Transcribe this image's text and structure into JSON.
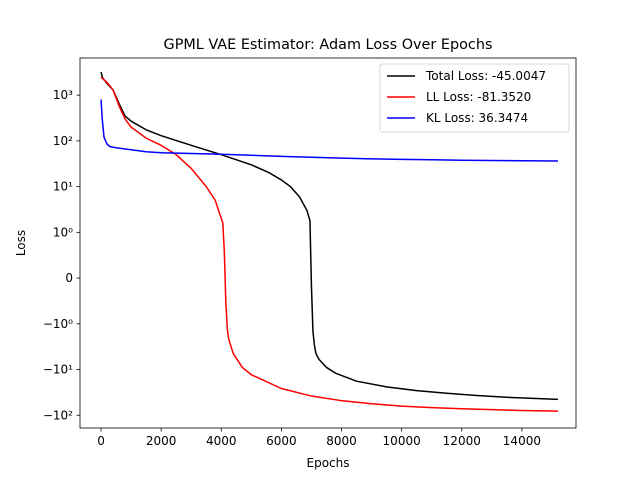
{
  "chart_data": {
    "type": "line",
    "title": "GPML VAE Estimator: Adam Loss Over Epochs",
    "xlabel": "Epochs",
    "ylabel": "Loss",
    "yscale": "symlog",
    "linthresh": 1,
    "xlim": [
      -700,
      15800
    ],
    "ylim": [
      -190,
      6500
    ],
    "x_ticks": [
      0,
      2000,
      4000,
      6000,
      8000,
      10000,
      12000,
      14000
    ],
    "x_tick_labels": [
      "0",
      "2000",
      "4000",
      "6000",
      "8000",
      "10000",
      "12000",
      "14000"
    ],
    "y_ticks": [
      1000,
      100,
      10,
      1,
      0,
      -1,
      -10,
      -100
    ],
    "y_tick_labels": [
      "10³",
      "10²",
      "10¹",
      "10⁰",
      "0",
      "−10⁰",
      "−10¹",
      "−10²"
    ],
    "grid": false,
    "legend_position": "top-right",
    "series": [
      {
        "name": "Total Loss: -45.0047",
        "color": "#000000",
        "points": [
          [
            0,
            3200
          ],
          [
            50,
            2400
          ],
          [
            200,
            1800
          ],
          [
            400,
            1300
          ],
          [
            600,
            650
          ],
          [
            800,
            350
          ],
          [
            1000,
            270
          ],
          [
            1500,
            175
          ],
          [
            2000,
            130
          ],
          [
            3000,
            80
          ],
          [
            4000,
            50
          ],
          [
            5000,
            30
          ],
          [
            5600,
            20
          ],
          [
            6000,
            14
          ],
          [
            6300,
            10
          ],
          [
            6600,
            6
          ],
          [
            6850,
            3
          ],
          [
            6950,
            1.8
          ],
          [
            7000,
            -0.2
          ],
          [
            7050,
            -1.5
          ],
          [
            7100,
            -3
          ],
          [
            7150,
            -4.5
          ],
          [
            7250,
            -6
          ],
          [
            7500,
            -9
          ],
          [
            7800,
            -12
          ],
          [
            8500,
            -18
          ],
          [
            9500,
            -24
          ],
          [
            10500,
            -29
          ],
          [
            11500,
            -33
          ],
          [
            12500,
            -37
          ],
          [
            13500,
            -40.5
          ],
          [
            15200,
            -45
          ]
        ]
      },
      {
        "name": "LL Loss: -81.3520",
        "color": "#ff0000",
        "points": [
          [
            0,
            2500
          ],
          [
            50,
            2300
          ],
          [
            200,
            1900
          ],
          [
            400,
            1300
          ],
          [
            600,
            580
          ],
          [
            800,
            300
          ],
          [
            1000,
            200
          ],
          [
            1500,
            115
          ],
          [
            2000,
            80
          ],
          [
            2500,
            50
          ],
          [
            3000,
            25
          ],
          [
            3500,
            10
          ],
          [
            3800,
            5
          ],
          [
            3950,
            2.5
          ],
          [
            4050,
            1.6
          ],
          [
            4100,
            0.6
          ],
          [
            4150,
            -0.5
          ],
          [
            4200,
            -1.3
          ],
          [
            4250,
            -2.2
          ],
          [
            4400,
            -4.5
          ],
          [
            4700,
            -9
          ],
          [
            5000,
            -13
          ],
          [
            6000,
            -26
          ],
          [
            7000,
            -38
          ],
          [
            8000,
            -48
          ],
          [
            9000,
            -56
          ],
          [
            10000,
            -63
          ],
          [
            11000,
            -68
          ],
          [
            12000,
            -72
          ],
          [
            13000,
            -75.5
          ],
          [
            14000,
            -78.5
          ],
          [
            15200,
            -81.35
          ]
        ]
      },
      {
        "name": " KL Loss: 36.3474",
        "color": "#0000ff",
        "points": [
          [
            0,
            800
          ],
          [
            40,
            300
          ],
          [
            100,
            120
          ],
          [
            200,
            85
          ],
          [
            300,
            75
          ],
          [
            500,
            71
          ],
          [
            1000,
            64
          ],
          [
            1500,
            58
          ],
          [
            2000,
            55
          ],
          [
            3000,
            53
          ],
          [
            4000,
            51
          ],
          [
            5000,
            48.5
          ],
          [
            6000,
            46
          ],
          [
            7000,
            44
          ],
          [
            8000,
            42
          ],
          [
            9000,
            40.5
          ],
          [
            10000,
            39.5
          ],
          [
            11000,
            38.6
          ],
          [
            12000,
            37.8
          ],
          [
            13000,
            37.2
          ],
          [
            14000,
            36.8
          ],
          [
            15200,
            36.35
          ]
        ]
      }
    ]
  }
}
